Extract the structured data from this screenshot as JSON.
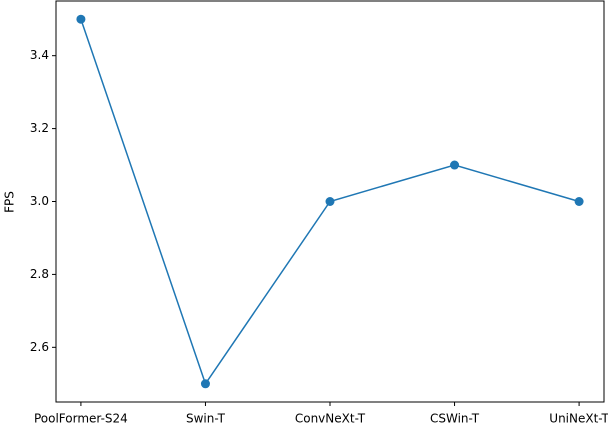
{
  "chart_data": {
    "type": "line",
    "y_label": "FPS",
    "categories": [
      "PoolFormer-S24",
      "Swin-T",
      "ConvNeXt-T",
      "CSWin-T",
      "UniNeXt-T"
    ],
    "series": [
      {
        "name": "FPS",
        "color": "#1f77b4",
        "values": [
          3.5,
          2.5,
          3.0,
          3.1,
          3.0
        ]
      }
    ],
    "ylim": [
      2.45,
      3.55
    ],
    "yticks": [
      2.6,
      2.8,
      {
        "value": 3.0,
        "label": "3.0"
      },
      3.2,
      3.4
    ],
    "grid": false
  }
}
